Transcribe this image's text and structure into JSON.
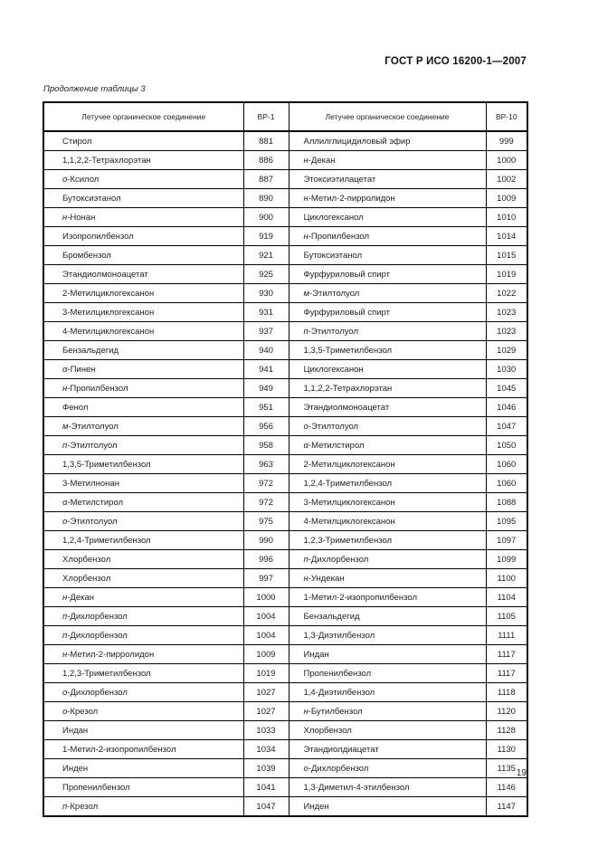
{
  "page": {
    "header_title": "ГОСТ Р ИСО 16200-1—2007",
    "table_caption": "Продолжение таблицы 3",
    "page_number": "19"
  },
  "table": {
    "columns": [
      "Летучее органическое соединение",
      "ВР-1",
      "Летучее органическое соединение",
      "ВР-10"
    ],
    "rows": [
      [
        "Стирол",
        "881",
        "Аллилглицидиловый эфир",
        "999"
      ],
      [
        "1,1,2,2-Тетрахлорэтан",
        "886",
        "н-Декан",
        "1000"
      ],
      [
        "о-Ксилол",
        "887",
        "Этоксиэтилацетат",
        "1002"
      ],
      [
        "Бутоксиэтанол",
        "890",
        "н-Метил-2-пирролидон",
        "1009"
      ],
      [
        "н-Нонан",
        "900",
        "Циклогексанол",
        "1010"
      ],
      [
        "Изопропилбензол",
        "919",
        "н-Пропилбензол",
        "1014"
      ],
      [
        "Бромбензол",
        "921",
        "Бутоксиэтанол",
        "1015"
      ],
      [
        "Этандиолмоноацетат",
        "925",
        "Фурфуриловый спирт",
        "1019"
      ],
      [
        "2-Метилциклогексанон",
        "930",
        "м-Этилтолуол",
        "1022"
      ],
      [
        "3-Метилциклогексанон",
        "931",
        "Фурфуриловый спирт",
        "1023"
      ],
      [
        "4-Метилциклогексанон",
        "937",
        "п-Этилтолуол",
        "1023"
      ],
      [
        "Бензальдегид",
        "940",
        "1,3,5-Триметилбензол",
        "1029"
      ],
      [
        "α-Пинен",
        "941",
        "Циклогексанон",
        "1030"
      ],
      [
        "н-Пропилбензол",
        "949",
        "1,1,2,2-Тетрахлорэтан",
        "1045"
      ],
      [
        "Фенол",
        "951",
        "Этандиолмоноацетат",
        "1046"
      ],
      [
        "м-Этилтолуол",
        "956",
        "о-Этилтолуол",
        "1047"
      ],
      [
        "п-Этилтолуол",
        "958",
        "α-Метилстирол",
        "1050"
      ],
      [
        "1,3,5-Триметилбензол",
        "963",
        "2-Метилциклогексанон",
        "1060"
      ],
      [
        "3-Метилнонан",
        "972",
        "1,2,4-Триметилбензол",
        "1060"
      ],
      [
        "α-Метилстирол",
        "972",
        "3-Метилциклогексанон",
        "1088"
      ],
      [
        "о-Этилтолуол",
        "975",
        "4-Метилциклогексанон",
        "1095"
      ],
      [
        "1,2,4-Триметилбензол",
        "990",
        "1,2,3-Триметилбензол",
        "1097"
      ],
      [
        "Хлорбензол",
        "996",
        "п-Дихлорбензол",
        "1099"
      ],
      [
        "Хлорбензол",
        "997",
        "н-Ундекан",
        "1100"
      ],
      [
        "н-Декан",
        "1000",
        "1-Метил-2-изопропилбензол",
        "1104"
      ],
      [
        "п-Дихлорбензол",
        "1004",
        "Бензальдегид",
        "1105"
      ],
      [
        "п-Дихлорбензол",
        "1004",
        "1,3-Диэтилбензол",
        "1111"
      ],
      [
        "н-Метил-2-пирролидон",
        "1009",
        "Индан",
        "1117"
      ],
      [
        "1,2,3-Триметилбензол",
        "1019",
        "Пропенилбензол",
        "1117"
      ],
      [
        "о-Дихлорбензол",
        "1027",
        "1,4-Диэтилбензол",
        "1118"
      ],
      [
        "о-Крезол",
        "1027",
        "н-Бутилбензол",
        "1120"
      ],
      [
        "Индан",
        "1033",
        "Хлорбензол",
        "1128"
      ],
      [
        "1-Метил-2-изопропилбензол",
        "1034",
        "Этандиолдиацетат",
        "1130"
      ],
      [
        "Инден",
        "1039",
        "о-Дихлорбензол",
        "1135"
      ],
      [
        "Пропенилбензол",
        "1041",
        "1,3-Диметил-4-этилбензол",
        "1146"
      ],
      [
        "п-Крезол",
        "1047",
        "Инден",
        "1147"
      ]
    ]
  }
}
